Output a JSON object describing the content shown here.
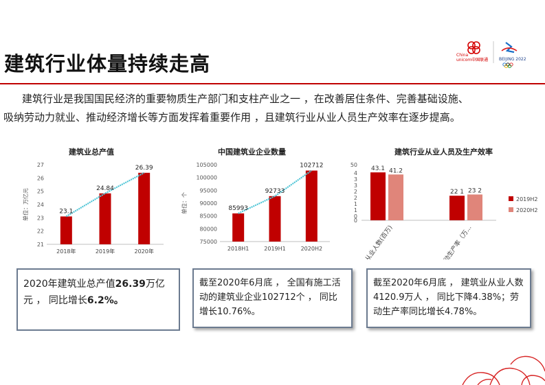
{
  "header": {
    "title": "建筑行业体量持续走高",
    "logo_brand": "China unicom中国联通",
    "logo_olympic": "BEIJING 2022"
  },
  "intro": {
    "line1": "建筑行业是我国国民经济的重要物质生产部门和支柱产业之一 ，在改善居住条件、完善基础设施、",
    "line2": "吸纳劳动力就业、推动经济增长等方面发挥着重要作用 ，且建筑行业从业人员生产效率在逐步提高。"
  },
  "chart_data": [
    {
      "type": "bar",
      "title": "建筑业总产值",
      "ylabel": "单位：万亿元",
      "categories": [
        "2018年",
        "2019年",
        "2020年"
      ],
      "values": [
        23.1,
        24.84,
        26.39
      ],
      "data_labels": [
        "23.1",
        "24.84",
        "26.39"
      ],
      "ylim": [
        21,
        27
      ],
      "yticks": [
        21,
        22,
        23,
        24,
        25,
        26,
        27
      ],
      "trendline": true,
      "bar_color": "#c00000",
      "trend_color": "#4ec5d6"
    },
    {
      "type": "bar",
      "title": "中国建筑业企业数量",
      "ylabel": "单位：个",
      "categories": [
        "2018H1",
        "2019H1",
        "2020H2"
      ],
      "values": [
        85993,
        92733,
        102712
      ],
      "data_labels": [
        "85993",
        "92733",
        "102712"
      ],
      "ylim": [
        75000,
        105000
      ],
      "yticks": [
        75000,
        80000,
        85000,
        90000,
        95000,
        100000,
        105000
      ],
      "trendline": true,
      "bar_color": "#c00000",
      "trend_color": "#4ec5d6"
    },
    {
      "type": "bar",
      "title": "建筑行业从业人员及生产效率",
      "categories": [
        "从业人数(百万)",
        "劳动生产率（万..."
      ],
      "series": [
        {
          "name": "2019H2",
          "values": [
            43.1,
            22.1
          ],
          "data_labels": [
            "43.1",
            "22 1"
          ],
          "color": "#c00000"
        },
        {
          "name": "2020H2",
          "values": [
            41.2,
            23.2
          ],
          "data_labels": [
            "41.2",
            "23 2"
          ],
          "color": "#e0857a"
        }
      ],
      "yticks": [
        "50",
        "4",
        "3",
        "3",
        "2",
        "2",
        "1",
        "1",
        "0",
        "0"
      ],
      "legend": "right"
    }
  ],
  "boxes": {
    "box1_a": "2020年建筑业总产值",
    "box1_b": "26.39",
    "box1_c": "万亿",
    "box1_d": "元 ，  同比增长",
    "box1_e": "6.2%。",
    "box2": "截至2020年6月底 ，  全国有施工活动的建筑业企业102712个 ，  同比增长10.76%。",
    "box3": "截至2020年6月底 ，  建筑业从业人数4120.9万人 ，  同比下降4.38%；劳动生产率同比增长4.78%。"
  }
}
